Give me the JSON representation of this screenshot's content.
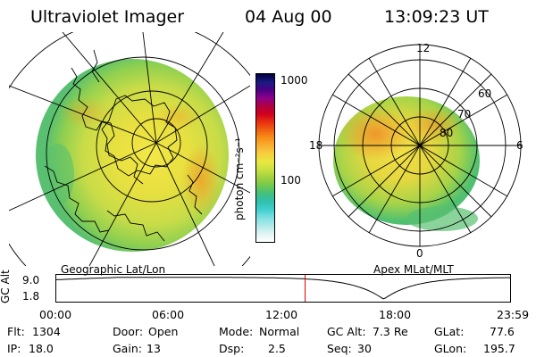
{
  "header": {
    "instrument": "Ultraviolet Imager",
    "date": "04 Aug 00",
    "time": "13:09:23 UT"
  },
  "geo_panel": {
    "label": "Geographic Lat/Lon"
  },
  "apex_panel": {
    "label": "Apex MLat/MLT",
    "mlt_labels": {
      "top": "12",
      "left": "18",
      "right": "6",
      "bottom": "0"
    },
    "lat_labels": [
      "60",
      "70",
      "80"
    ]
  },
  "colorbar": {
    "unit_label": "photon cm⁻²s⁻¹",
    "tick_1000": "1000",
    "tick_100": "100",
    "colors": [
      "#000040",
      "#1a1a80",
      "#4b0082",
      "#8b008b",
      "#b00040",
      "#d00020",
      "#e83010",
      "#f06010",
      "#f89018",
      "#f8b030",
      "#f8d040",
      "#e8e840",
      "#c8e040",
      "#a0d040",
      "#70c850",
      "#40c080",
      "#30c0b0",
      "#40d0d0",
      "#80e0e0",
      "#b0eaea",
      "#e0f4f4",
      "#ffffff"
    ]
  },
  "altitude_plot": {
    "ylabel": "GC Alt",
    "yticks": [
      "9.0",
      "1.8"
    ],
    "xticks": [
      "00:00",
      "06:00",
      "12:00",
      "18:00",
      "23:59"
    ],
    "marker_time": "13:09"
  },
  "info": {
    "flt_label": "Flt:",
    "flt_value": "1304",
    "ip_label": "IP:",
    "ip_value": "18.0",
    "door_label": "Door:",
    "door_value": "Open",
    "gain_label": "Gain:",
    "gain_value": "13",
    "mode_label": "Mode:",
    "mode_value": "Normal",
    "dsp_label": "Dsp:",
    "dsp_value": "2.5",
    "gcalt_label": "GC Alt:",
    "gcalt_value": "7.3 Re",
    "seq_label": "Seq:",
    "seq_value": "30",
    "glat_label": "GLat:",
    "glat_value": "77.6",
    "glon_label": "GLon:",
    "glon_value": "195.7"
  }
}
